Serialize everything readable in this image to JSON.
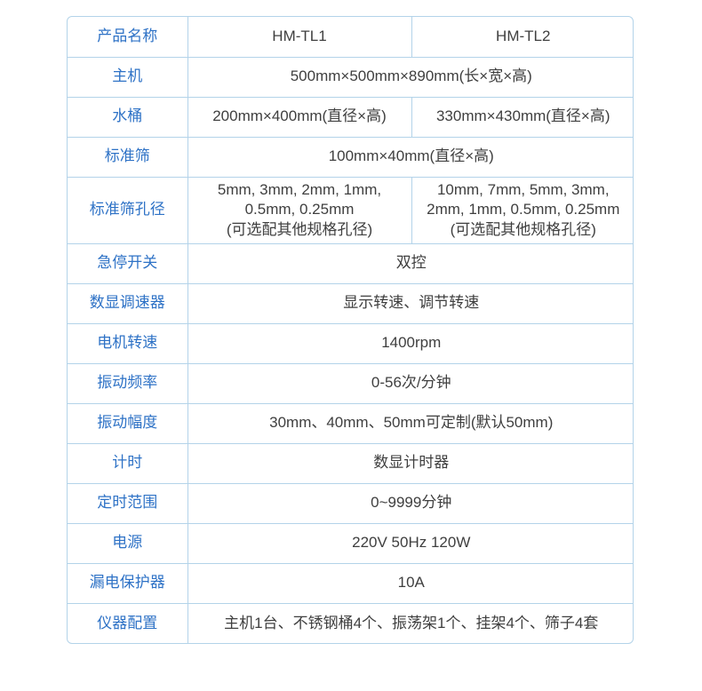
{
  "colors": {
    "border": "#b3d3e9",
    "label_text": "#2e72c6",
    "value_text": "#3f3f3f",
    "page_bg": "#ffffff"
  },
  "table": {
    "columns": [
      "label",
      "value_left",
      "value_right"
    ],
    "rows": [
      {
        "label": "产品名称",
        "cells": [
          "HM-TL1",
          "HM-TL2"
        ],
        "tall": false
      },
      {
        "label": "主机",
        "cells": [
          "500mm×500mm×890mm(长×宽×高)"
        ],
        "tall": false
      },
      {
        "label": "水桶",
        "cells": [
          "200mm×400mm(直径×高)",
          "330mm×430mm(直径×高)"
        ],
        "tall": false
      },
      {
        "label": "标准筛",
        "cells": [
          "100mm×40mm(直径×高)"
        ],
        "tall": false
      },
      {
        "label": "标准筛孔径",
        "cells": [
          [
            "5mm, 3mm, 2mm, 1mm,",
            "0.5mm, 0.25mm",
            "(可选配其他规格孔径)"
          ],
          [
            "10mm, 7mm, 5mm, 3mm,",
            "2mm, 1mm, 0.5mm, 0.25mm",
            "(可选配其他规格孔径)"
          ]
        ],
        "tall": true
      },
      {
        "label": "急停开关",
        "cells": [
          "双控"
        ],
        "tall": false
      },
      {
        "label": "数显调速器",
        "cells": [
          "显示转速、调节转速"
        ],
        "tall": false
      },
      {
        "label": "电机转速",
        "cells": [
          "1400rpm"
        ],
        "tall": false
      },
      {
        "label": "振动频率",
        "cells": [
          "0-56次/分钟"
        ],
        "tall": false
      },
      {
        "label": "振动幅度",
        "cells": [
          "30mm、40mm、50mm可定制(默认50mm)"
        ],
        "tall": false
      },
      {
        "label": "计时",
        "cells": [
          "数显计时器"
        ],
        "tall": false
      },
      {
        "label": "定时范围",
        "cells": [
          "0~9999分钟"
        ],
        "tall": false
      },
      {
        "label": "电源",
        "cells": [
          "220V 50Hz 120W"
        ],
        "tall": false
      },
      {
        "label": "漏电保护器",
        "cells": [
          "10A"
        ],
        "tall": false
      },
      {
        "label": "仪器配置",
        "cells": [
          "主机1台、不锈钢桶4个、振荡架1个、挂架4个、筛子4套"
        ],
        "tall": false
      }
    ]
  }
}
